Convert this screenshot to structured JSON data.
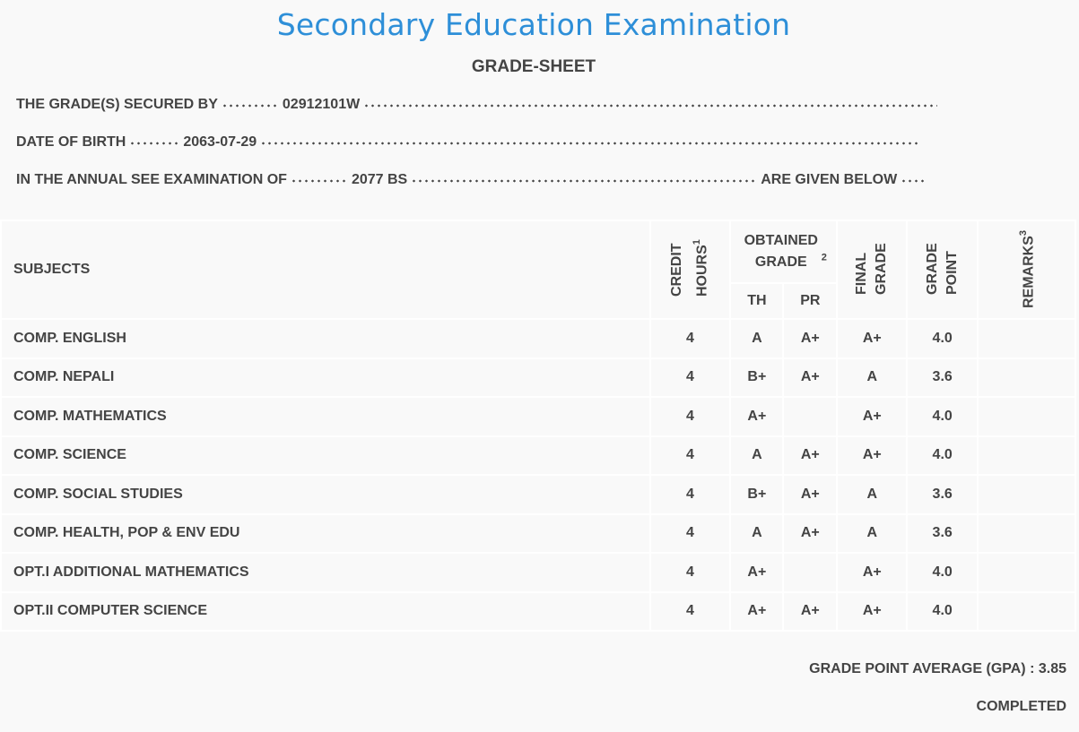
{
  "title": "Secondary Education Examination",
  "subtitle": "GRADE-SHEET",
  "info": [
    {
      "label": "THE GRADE(S) SECURED BY",
      "value": "02912101W"
    },
    {
      "label": "DATE OF BIRTH",
      "value": "2063-07-29"
    },
    {
      "label": "IN THE ANNUAL SEE EXAMINATION OF",
      "value": "2077 BS",
      "suffix": "ARE GIVEN BELOW"
    }
  ],
  "table": {
    "headers": {
      "subjects": "SUBJECTS",
      "credit_hours": "CREDIT HOURS",
      "credit_hours_note": "1",
      "obtained_grade": "OBTAINED GRADE",
      "obtained_grade_note": "2",
      "th": "TH",
      "pr": "PR",
      "final_grade": "FINAL GRADE",
      "grade_point": "GRADE POINT",
      "remarks": "REMARKS",
      "remarks_note": "3"
    },
    "rows": [
      [
        "COMP. ENGLISH",
        4,
        "A",
        "A+",
        "A+",
        "4.0"
      ],
      [
        "COMP. NEPALI",
        4,
        "B+",
        "A+",
        "A",
        "3.6"
      ],
      [
        "COMP. MATHEMATICS",
        4,
        "A+",
        null,
        "A+",
        "4.0"
      ],
      [
        "COMP. SCIENCE",
        4,
        "A",
        "A+",
        "A+",
        "4.0"
      ],
      [
        "COMP. SOCIAL STUDIES",
        4,
        "B+",
        "A+",
        "A",
        "3.6"
      ],
      [
        "COMP. HEALTH, POP & ENV EDU",
        4,
        "A",
        "A+",
        "A",
        "3.6"
      ],
      [
        "OPT.I ADDITIONAL MATHEMATICS",
        4,
        "A+",
        null,
        "A+",
        "4.0"
      ],
      [
        "OPT.II COMPUTER SCIENCE",
        4,
        "A+",
        "A+",
        "A+",
        "4.0"
      ]
    ]
  },
  "gpa": {
    "label": "GRADE POINT AVERAGE (GPA) :",
    "value": 3.85
  },
  "status": "COMPLETED"
}
